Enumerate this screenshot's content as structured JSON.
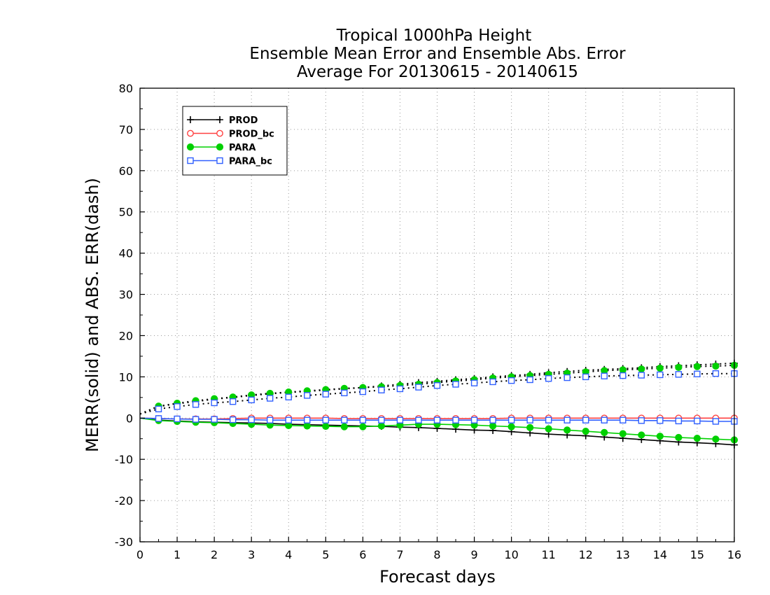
{
  "chart_data": {
    "type": "line",
    "title_lines": [
      "Tropical 1000hPa Height",
      "Ensemble Mean Error and Ensemble Abs. Error",
      "Average For 20130615 - 20140615"
    ],
    "xlabel": "Forecast days",
    "ylabel": "MERR(solid) and ABS. ERR(dash)",
    "xlim": [
      0,
      16
    ],
    "ylim": [
      -30,
      80
    ],
    "xticks": [
      0,
      1,
      2,
      3,
      4,
      5,
      6,
      7,
      8,
      9,
      10,
      11,
      12,
      13,
      14,
      15,
      16
    ],
    "yticks": [
      -30,
      -20,
      -10,
      0,
      10,
      20,
      30,
      40,
      50,
      60,
      70,
      80
    ],
    "grid": true,
    "legend_position": "top-left",
    "x": [
      0,
      0.5,
      1,
      1.5,
      2,
      2.5,
      3,
      3.5,
      4,
      4.5,
      5,
      5.5,
      6,
      6.5,
      7,
      7.5,
      8,
      8.5,
      9,
      9.5,
      10,
      10.5,
      11,
      11.5,
      12,
      12.5,
      13,
      13.5,
      14,
      14.5,
      15,
      15.5,
      16
    ],
    "series": [
      {
        "name": "PROD",
        "color": "#000000",
        "marker": "plus",
        "mean_error": [
          0,
          -0.5,
          -0.7,
          -0.9,
          -1.0,
          -1.1,
          -1.2,
          -1.3,
          -1.5,
          -1.6,
          -1.7,
          -1.8,
          -1.9,
          -2.0,
          -2.2,
          -2.3,
          -2.5,
          -2.7,
          -2.9,
          -3.0,
          -3.3,
          -3.6,
          -3.9,
          -4.1,
          -4.3,
          -4.6,
          -4.9,
          -5.2,
          -5.5,
          -5.8,
          -6.0,
          -6.2,
          -6.5
        ],
        "abs_error": [
          1.0,
          2.8,
          3.5,
          4.0,
          4.6,
          5.0,
          5.5,
          5.9,
          6.2,
          6.5,
          6.8,
          7.1,
          7.4,
          7.8,
          8.2,
          8.6,
          8.9,
          9.3,
          9.6,
          10.0,
          10.3,
          10.6,
          11.0,
          11.3,
          11.6,
          11.8,
          12.0,
          12.2,
          12.5,
          12.7,
          12.9,
          13.1,
          13.3
        ]
      },
      {
        "name": "PROD_bc",
        "color": "#ff4040",
        "marker": "circle-open",
        "mean_error": [
          0,
          -0.1,
          -0.2,
          -0.2,
          -0.2,
          -0.1,
          0,
          0,
          0,
          0,
          0,
          -0.1,
          -0.1,
          -0.1,
          -0.1,
          -0.1,
          -0.1,
          -0.1,
          -0.1,
          -0.1,
          0,
          0,
          0,
          0,
          0,
          0,
          0,
          0,
          0,
          0,
          0,
          0,
          0
        ]
      },
      {
        "name": "PARA",
        "color": "#00d000",
        "marker": "circle-filled",
        "mean_error": [
          0,
          -0.6,
          -0.8,
          -1.0,
          -1.1,
          -1.3,
          -1.5,
          -1.7,
          -1.8,
          -1.9,
          -2.0,
          -2.1,
          -2.1,
          -1.9,
          -1.7,
          -1.5,
          -1.5,
          -1.6,
          -1.7,
          -1.9,
          -2.1,
          -2.3,
          -2.6,
          -2.9,
          -3.2,
          -3.5,
          -3.8,
          -4.1,
          -4.4,
          -4.7,
          -4.9,
          -5.1,
          -5.3
        ],
        "abs_error": [
          1.0,
          2.9,
          3.6,
          4.2,
          4.7,
          5.1,
          5.6,
          6.0,
          6.3,
          6.6,
          6.9,
          7.2,
          7.4,
          7.6,
          7.9,
          8.2,
          8.6,
          9.0,
          9.3,
          9.7,
          10.0,
          10.3,
          10.6,
          10.9,
          11.2,
          11.5,
          11.7,
          11.9,
          12.1,
          12.3,
          12.5,
          12.6,
          12.8
        ]
      },
      {
        "name": "PARA_bc",
        "color": "#3060ff",
        "marker": "square-open",
        "mean_error": [
          0,
          -0.1,
          -0.2,
          -0.3,
          -0.3,
          -0.4,
          -0.4,
          -0.5,
          -0.5,
          -0.5,
          -0.5,
          -0.5,
          -0.5,
          -0.5,
          -0.5,
          -0.5,
          -0.5,
          -0.5,
          -0.5,
          -0.5,
          -0.5,
          -0.5,
          -0.5,
          -0.5,
          -0.5,
          -0.5,
          -0.5,
          -0.6,
          -0.6,
          -0.7,
          -0.7,
          -0.8,
          -0.8
        ],
        "abs_error": [
          1.0,
          2.2,
          2.8,
          3.3,
          3.7,
          4.0,
          4.4,
          4.8,
          5.1,
          5.5,
          5.8,
          6.1,
          6.4,
          6.8,
          7.1,
          7.5,
          7.9,
          8.2,
          8.5,
          8.8,
          9.1,
          9.3,
          9.6,
          9.8,
          10.0,
          10.2,
          10.3,
          10.4,
          10.5,
          10.6,
          10.7,
          10.8,
          10.8
        ]
      }
    ]
  }
}
